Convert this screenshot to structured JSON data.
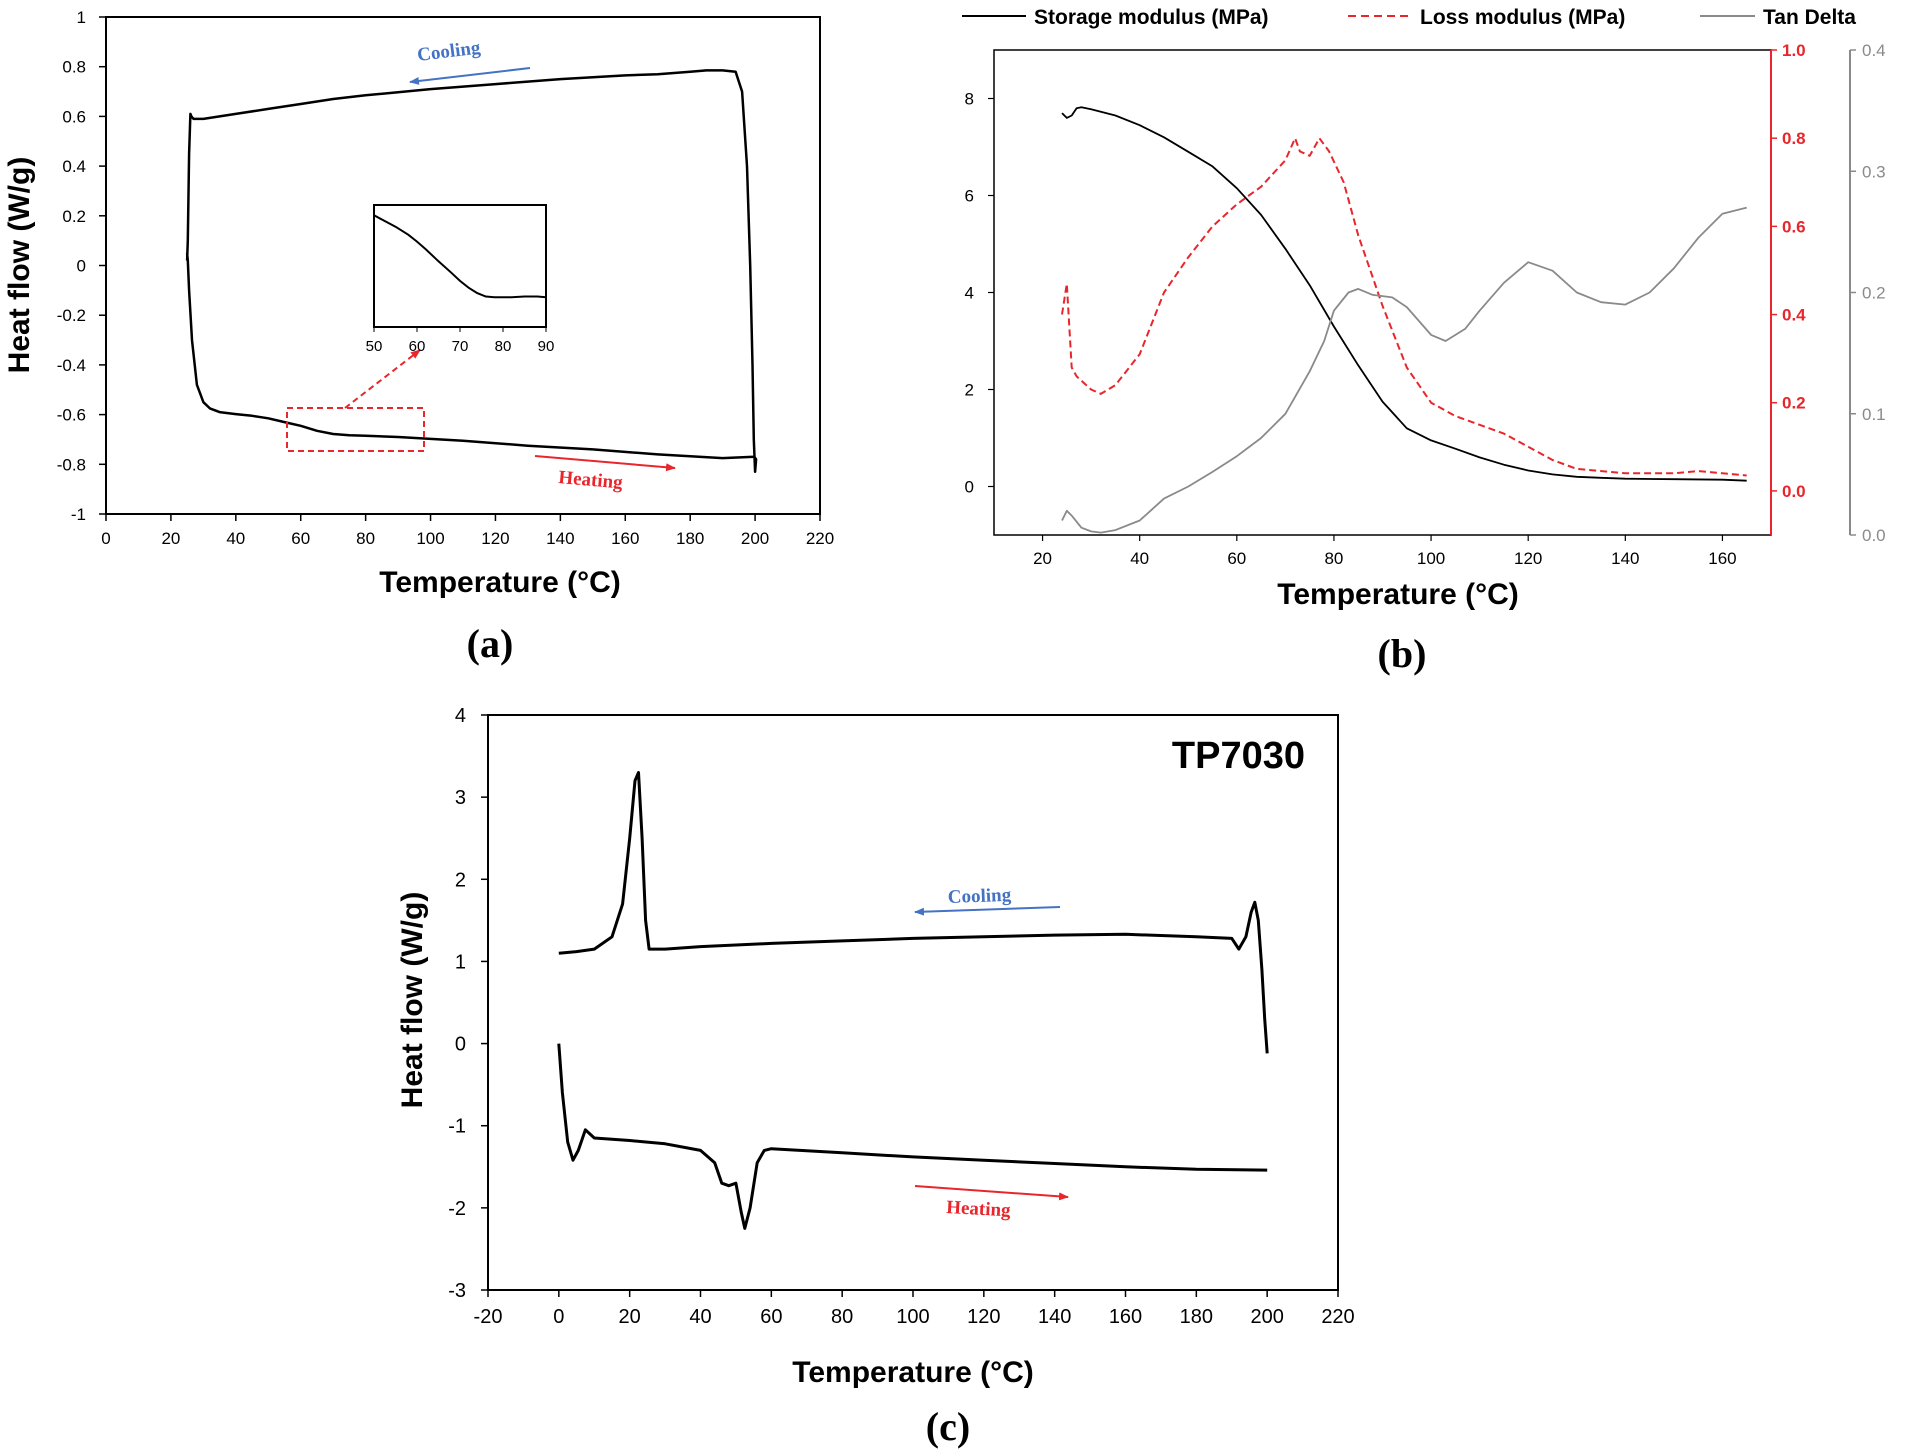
{
  "colors": {
    "black": "#000000",
    "red": "#e8262b",
    "gray": "#8a8a8a",
    "blue": "#4472c4"
  },
  "chart_data": [
    {
      "id": "a",
      "type": "line",
      "panel_label": "(a)",
      "xlabel": "Temperature (°C)",
      "ylabel": "Heat flow (W/g)",
      "xlim": [
        0,
        220
      ],
      "ylim": [
        -1,
        1
      ],
      "x_ticks": [
        0,
        20,
        40,
        60,
        80,
        100,
        120,
        140,
        160,
        180,
        200,
        220
      ],
      "y_ticks": [
        -1,
        -0.8,
        -0.6,
        -0.4,
        -0.2,
        0,
        0.2,
        0.4,
        0.6,
        0.8,
        1
      ],
      "annotations": {
        "cooling": "Cooling",
        "heating": "Heating"
      },
      "series": [
        {
          "points": [
            [
              25,
              0.02
            ],
            [
              25.2,
              0.1
            ],
            [
              25.6,
              0.45
            ],
            [
              26,
              0.61
            ],
            [
              26.3,
              0.6
            ],
            [
              27,
              0.59
            ],
            [
              30,
              0.59
            ],
            [
              40,
              0.61
            ],
            [
              50,
              0.63
            ],
            [
              60,
              0.65
            ],
            [
              70,
              0.67
            ],
            [
              80,
              0.685
            ],
            [
              100,
              0.71
            ],
            [
              120,
              0.73
            ],
            [
              140,
              0.75
            ],
            [
              160,
              0.765
            ],
            [
              170,
              0.77
            ],
            [
              180,
              0.78
            ],
            [
              185,
              0.785
            ],
            [
              190,
              0.785
            ],
            [
              194,
              0.78
            ],
            [
              196,
              0.7
            ],
            [
              197.5,
              0.4
            ],
            [
              198.5,
              0.0
            ],
            [
              199.2,
              -0.4
            ],
            [
              199.6,
              -0.7
            ],
            [
              200,
              -0.83
            ],
            [
              200.3,
              -0.78
            ],
            [
              199.8,
              -0.77
            ],
            [
              190,
              -0.775
            ],
            [
              170,
              -0.76
            ],
            [
              150,
              -0.74
            ],
            [
              130,
              -0.725
            ],
            [
              110,
              -0.705
            ],
            [
              90,
              -0.69
            ],
            [
              80,
              -0.685
            ],
            [
              75,
              -0.683
            ],
            [
              70,
              -0.678
            ],
            [
              65,
              -0.665
            ],
            [
              60,
              -0.645
            ],
            [
              55,
              -0.63
            ],
            [
              50,
              -0.615
            ],
            [
              45,
              -0.605
            ],
            [
              40,
              -0.598
            ],
            [
              35,
              -0.59
            ],
            [
              32,
              -0.575
            ],
            [
              30,
              -0.55
            ],
            [
              28,
              -0.48
            ],
            [
              26.5,
              -0.3
            ],
            [
              25.6,
              -0.1
            ],
            [
              25.2,
              0.02
            ],
            [
              25,
              0.05
            ]
          ]
        }
      ],
      "inset": {
        "xlim": [
          50,
          90
        ],
        "ylim": [
          -0.74,
          -0.56
        ],
        "x_ticks": [
          50,
          60,
          70,
          80,
          90
        ],
        "points": [
          [
            50,
            -0.575
          ],
          [
            52,
            -0.582
          ],
          [
            55,
            -0.592
          ],
          [
            58,
            -0.604
          ],
          [
            60,
            -0.614
          ],
          [
            62,
            -0.625
          ],
          [
            65,
            -0.643
          ],
          [
            68,
            -0.66
          ],
          [
            70,
            -0.672
          ],
          [
            72,
            -0.682
          ],
          [
            74,
            -0.69
          ],
          [
            76,
            -0.695
          ],
          [
            78,
            -0.696
          ],
          [
            80,
            -0.696
          ],
          [
            82,
            -0.696
          ],
          [
            85,
            -0.695
          ],
          [
            88,
            -0.695
          ],
          [
            90,
            -0.696
          ]
        ]
      }
    },
    {
      "id": "b",
      "type": "line",
      "panel_label": "(b)",
      "xlabel": "Temperature (°C)",
      "xlim": [
        10,
        170
      ],
      "x_ticks": [
        20,
        40,
        60,
        80,
        100,
        120,
        140,
        160
      ],
      "axes": {
        "left": {
          "ylim": [
            -1,
            9
          ],
          "ticks": [
            0,
            2,
            4,
            6,
            8
          ]
        },
        "right_red": {
          "ylim": [
            -0.1,
            1.0
          ],
          "ticks": [
            0.0,
            0.2,
            0.4,
            0.6,
            0.8,
            1.0
          ]
        },
        "right_gray": {
          "ylim": [
            0,
            0.4
          ],
          "ticks": [
            0.0,
            0.1,
            0.2,
            0.3,
            0.4
          ]
        }
      },
      "series": [
        {
          "name": "Storage modulus (MPa)",
          "axis": "left",
          "style": "solid-black",
          "points": [
            [
              24,
              7.7
            ],
            [
              25,
              7.6
            ],
            [
              26,
              7.65
            ],
            [
              27,
              7.8
            ],
            [
              28,
              7.82
            ],
            [
              30,
              7.78
            ],
            [
              35,
              7.65
            ],
            [
              40,
              7.45
            ],
            [
              45,
              7.2
            ],
            [
              50,
              6.9
            ],
            [
              55,
              6.6
            ],
            [
              60,
              6.15
            ],
            [
              65,
              5.6
            ],
            [
              70,
              4.9
            ],
            [
              75,
              4.15
            ],
            [
              80,
              3.3
            ],
            [
              85,
              2.5
            ],
            [
              90,
              1.75
            ],
            [
              95,
              1.2
            ],
            [
              100,
              0.95
            ],
            [
              105,
              0.78
            ],
            [
              110,
              0.6
            ],
            [
              115,
              0.45
            ],
            [
              120,
              0.33
            ],
            [
              125,
              0.25
            ],
            [
              130,
              0.2
            ],
            [
              135,
              0.18
            ],
            [
              140,
              0.16
            ],
            [
              150,
              0.15
            ],
            [
              160,
              0.14
            ],
            [
              165,
              0.12
            ]
          ]
        },
        {
          "name": "Loss modulus (MPa)",
          "axis": "right_red",
          "style": "dashed-red",
          "points": [
            [
              24,
              0.4
            ],
            [
              25,
              0.47
            ],
            [
              26,
              0.28
            ],
            [
              27,
              0.26
            ],
            [
              28,
              0.25
            ],
            [
              30,
              0.23
            ],
            [
              32,
              0.22
            ],
            [
              35,
              0.24
            ],
            [
              40,
              0.31
            ],
            [
              45,
              0.45
            ],
            [
              50,
              0.53
            ],
            [
              55,
              0.6
            ],
            [
              60,
              0.65
            ],
            [
              65,
              0.69
            ],
            [
              70,
              0.75
            ],
            [
              72,
              0.8
            ],
            [
              73,
              0.77
            ],
            [
              75,
              0.76
            ],
            [
              77,
              0.8
            ],
            [
              79,
              0.77
            ],
            [
              82,
              0.7
            ],
            [
              85,
              0.58
            ],
            [
              90,
              0.42
            ],
            [
              95,
              0.28
            ],
            [
              100,
              0.2
            ],
            [
              105,
              0.17
            ],
            [
              110,
              0.15
            ],
            [
              115,
              0.13
            ],
            [
              120,
              0.1
            ],
            [
              125,
              0.07
            ],
            [
              130,
              0.05
            ],
            [
              140,
              0.04
            ],
            [
              150,
              0.04
            ],
            [
              155,
              0.045
            ],
            [
              160,
              0.04
            ],
            [
              165,
              0.035
            ]
          ]
        },
        {
          "name": "Tan Delta",
          "axis": "right_gray",
          "style": "solid-gray",
          "points": [
            [
              24,
              0.012
            ],
            [
              25,
              0.02
            ],
            [
              26,
              0.016
            ],
            [
              28,
              0.006
            ],
            [
              30,
              0.003
            ],
            [
              32,
              0.002
            ],
            [
              35,
              0.004
            ],
            [
              40,
              0.012
            ],
            [
              45,
              0.03
            ],
            [
              50,
              0.04
            ],
            [
              55,
              0.052
            ],
            [
              60,
              0.065
            ],
            [
              65,
              0.08
            ],
            [
              70,
              0.1
            ],
            [
              75,
              0.135
            ],
            [
              78,
              0.16
            ],
            [
              80,
              0.185
            ],
            [
              83,
              0.2
            ],
            [
              85,
              0.203
            ],
            [
              88,
              0.198
            ],
            [
              92,
              0.196
            ],
            [
              95,
              0.188
            ],
            [
              100,
              0.165
            ],
            [
              103,
              0.16
            ],
            [
              107,
              0.17
            ],
            [
              110,
              0.185
            ],
            [
              115,
              0.208
            ],
            [
              120,
              0.225
            ],
            [
              125,
              0.218
            ],
            [
              130,
              0.2
            ],
            [
              135,
              0.192
            ],
            [
              140,
              0.19
            ],
            [
              145,
              0.2
            ],
            [
              150,
              0.22
            ],
            [
              155,
              0.245
            ],
            [
              160,
              0.265
            ],
            [
              165,
              0.27
            ]
          ]
        }
      ]
    },
    {
      "id": "c",
      "type": "line",
      "panel_label": "(c)",
      "title": "TP7030",
      "xlabel": "Temperature (°C)",
      "ylabel": "Heat flow (W/g)",
      "xlim": [
        -20,
        220
      ],
      "ylim": [
        -3,
        4
      ],
      "x_ticks": [
        -20,
        0,
        20,
        40,
        60,
        80,
        100,
        120,
        140,
        160,
        180,
        200,
        220
      ],
      "y_ticks": [
        -3,
        -2,
        -1,
        0,
        1,
        2,
        3,
        4
      ],
      "annotations": {
        "cooling": "Cooling",
        "heating": "Heating"
      },
      "series": [
        {
          "points": [
            [
              0,
              1.1
            ],
            [
              5,
              1.12
            ],
            [
              10,
              1.15
            ],
            [
              15,
              1.3
            ],
            [
              18,
              1.7
            ],
            [
              20,
              2.5
            ],
            [
              21.5,
              3.2
            ],
            [
              22.5,
              3.3
            ],
            [
              23.5,
              2.5
            ],
            [
              24.5,
              1.5
            ],
            [
              25.5,
              1.15
            ],
            [
              30,
              1.15
            ],
            [
              40,
              1.18
            ],
            [
              60,
              1.22
            ],
            [
              80,
              1.25
            ],
            [
              100,
              1.28
            ],
            [
              120,
              1.3
            ],
            [
              140,
              1.32
            ],
            [
              160,
              1.33
            ],
            [
              180,
              1.3
            ],
            [
              190,
              1.28
            ],
            [
              192,
              1.15
            ],
            [
              194,
              1.3
            ],
            [
              195.5,
              1.6
            ],
            [
              196.5,
              1.72
            ],
            [
              197.5,
              1.5
            ],
            [
              198.5,
              0.9
            ],
            [
              199.3,
              0.3
            ],
            [
              200,
              -0.12
            ]
          ]
        },
        {
          "points": [
            [
              0,
              0.0
            ],
            [
              1,
              -0.6
            ],
            [
              2.5,
              -1.2
            ],
            [
              4,
              -1.42
            ],
            [
              5.5,
              -1.3
            ],
            [
              7.5,
              -1.05
            ],
            [
              10,
              -1.15
            ],
            [
              20,
              -1.18
            ],
            [
              30,
              -1.22
            ],
            [
              40,
              -1.3
            ],
            [
              44,
              -1.45
            ],
            [
              46,
              -1.7
            ],
            [
              48,
              -1.73
            ],
            [
              50,
              -1.7
            ],
            [
              51.5,
              -2.05
            ],
            [
              52.5,
              -2.25
            ],
            [
              54,
              -2.0
            ],
            [
              56,
              -1.45
            ],
            [
              58,
              -1.3
            ],
            [
              60,
              -1.28
            ],
            [
              80,
              -1.33
            ],
            [
              100,
              -1.38
            ],
            [
              120,
              -1.42
            ],
            [
              140,
              -1.46
            ],
            [
              160,
              -1.5
            ],
            [
              180,
              -1.53
            ],
            [
              200,
              -1.54
            ]
          ]
        }
      ]
    }
  ]
}
